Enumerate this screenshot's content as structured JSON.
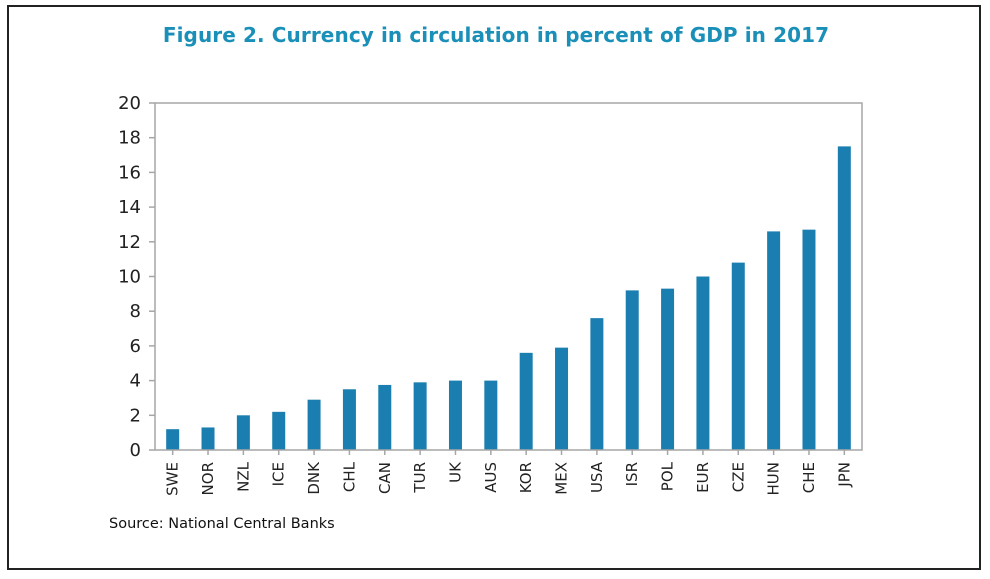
{
  "chart_data": {
    "type": "bar",
    "title": "Figure 2. Currency in circulation in percent of GDP in 2017",
    "source": "Source: National Central Banks",
    "xlabel": "",
    "ylabel": "",
    "ylim": [
      0,
      20
    ],
    "yticks": [
      "0",
      "2",
      "4",
      "6",
      "8",
      "10",
      "12",
      "14",
      "16",
      "18",
      "20"
    ],
    "categories": [
      "SWE",
      "NOR",
      "NZL",
      "ICE",
      "DNK",
      "CHL",
      "CAN",
      "TUR",
      "UK",
      "AUS",
      "KOR",
      "MEX",
      "USA",
      "ISR",
      "POL",
      "EUR",
      "CZE",
      "HUN",
      "CHE",
      "JPN"
    ],
    "values": [
      1.2,
      1.3,
      2.0,
      2.2,
      2.9,
      3.5,
      3.75,
      3.9,
      4.0,
      4.0,
      5.6,
      5.9,
      7.6,
      9.2,
      9.3,
      10.0,
      10.8,
      12.6,
      12.7,
      17.5
    ],
    "bar_color": "#1a7fb0",
    "grid": false
  }
}
